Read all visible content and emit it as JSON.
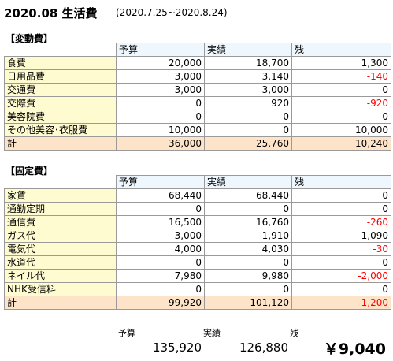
{
  "title": "2020.08  生活費",
  "period": "(2020.7.25~2020.8.24)",
  "columns": [
    "予算",
    "実績",
    "残"
  ],
  "variable": {
    "heading": "【変動費】",
    "rows": [
      {
        "label": "食費",
        "budget": "20,000",
        "actual": "18,700",
        "remain": "1,300",
        "neg": false
      },
      {
        "label": "日用品費",
        "budget": "3,000",
        "actual": "3,140",
        "remain": "-140",
        "neg": true
      },
      {
        "label": "交通費",
        "budget": "3,000",
        "actual": "3,000",
        "remain": "0",
        "neg": false
      },
      {
        "label": "交際費",
        "budget": "0",
        "actual": "920",
        "remain": "-920",
        "neg": true
      },
      {
        "label": "美容院費",
        "budget": "0",
        "actual": "0",
        "remain": "0",
        "neg": false
      },
      {
        "label": "その他美容･衣服費",
        "budget": "10,000",
        "actual": "0",
        "remain": "10,000",
        "neg": false
      }
    ],
    "total": {
      "label": "計",
      "budget": "36,000",
      "actual": "25,760",
      "remain": "10,240",
      "neg": false
    }
  },
  "fixed": {
    "heading": "【固定費】",
    "rows": [
      {
        "label": "家賃",
        "budget": "68,440",
        "actual": "68,440",
        "remain": "0",
        "neg": false
      },
      {
        "label": "通勤定期",
        "budget": "0",
        "actual": "0",
        "remain": "0",
        "neg": false
      },
      {
        "label": "通信費",
        "budget": "16,500",
        "actual": "16,760",
        "remain": "-260",
        "neg": true
      },
      {
        "label": "ガス代",
        "budget": "3,000",
        "actual": "1,910",
        "remain": "1,090",
        "neg": false
      },
      {
        "label": "電気代",
        "budget": "4,000",
        "actual": "4,030",
        "remain": "-30",
        "neg": true
      },
      {
        "label": "水道代",
        "budget": "0",
        "actual": "0",
        "remain": "0",
        "neg": false
      },
      {
        "label": "ネイル代",
        "budget": "7,980",
        "actual": "9,980",
        "remain": "-2,000",
        "neg": true
      },
      {
        "label": "NHK受信料",
        "budget": "0",
        "actual": "0",
        "remain": "0",
        "neg": false
      }
    ],
    "total": {
      "label": "計",
      "budget": "99,920",
      "actual": "101,120",
      "remain": "-1,200",
      "neg": true
    }
  },
  "summary": {
    "budget_label": "予算",
    "actual_label": "実績",
    "remain_label": "残",
    "budget_value": "135,920",
    "actual_value": "126,880",
    "remain_value": "￥9,040"
  },
  "colors": {
    "label_bg": "#fffbd0",
    "header_bg": "#eef7fd",
    "total_bg": "#fde4c9",
    "negative": "#ff0000"
  }
}
